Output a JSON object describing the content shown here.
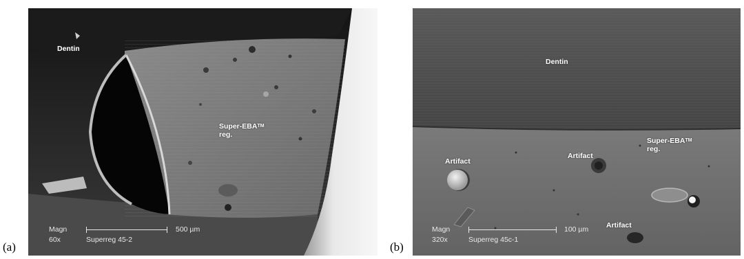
{
  "panels": [
    {
      "letter": "(a)",
      "labels": {
        "dentin": "Dentin",
        "material": "Super-EBA",
        "tm": "TM",
        "reg": "reg."
      },
      "scale": {
        "magn_label": "Magn",
        "magnification": "60x",
        "sample": "Superreg 45-2",
        "bar_length": "500 µm"
      }
    },
    {
      "letter": "(b)",
      "labels": {
        "dentin": "Dentin",
        "material": "Super-EBA",
        "tm": "TM",
        "reg": "reg.",
        "artifact_1": "Artifact",
        "artifact_2": "Artifact",
        "artifact_3": "Artifact"
      },
      "scale": {
        "magn_label": "Magn",
        "magnification": "320x",
        "sample": "Superreg 45c-1",
        "bar_length": "100 µm"
      }
    }
  ]
}
